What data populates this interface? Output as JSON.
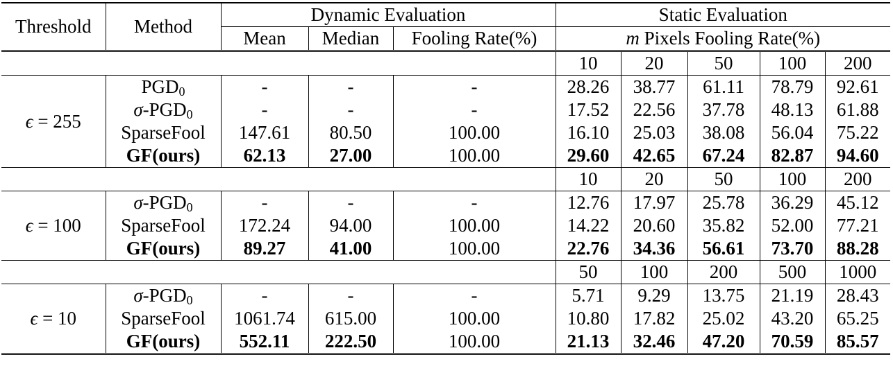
{
  "header": {
    "threshold": "Threshold",
    "method": "Method",
    "dynamic": "Dynamic Evaluation",
    "static": "Static Evaluation",
    "mean": "Mean",
    "median": "Median",
    "fooling": "Fooling Rate(%)",
    "m": "m",
    "pixels_fooling": " Pixels Fooling Rate(%)"
  },
  "groups": [
    {
      "eps_symbol": "ϵ",
      "eps_value": " = 255",
      "m_values": [
        "10",
        "20",
        "50",
        "100",
        "200"
      ],
      "rows": [
        {
          "method": "PGD",
          "sub": "0",
          "prefix": "",
          "bold": false,
          "dyn": [
            "-",
            "-",
            "-"
          ],
          "stat": [
            "28.26",
            "38.77",
            "61.11",
            "78.79",
            "92.61"
          ]
        },
        {
          "method": "-PGD",
          "sub": "0",
          "prefix": "σ",
          "bold": false,
          "dyn": [
            "-",
            "-",
            "-"
          ],
          "stat": [
            "17.52",
            "22.56",
            "37.78",
            "48.13",
            "61.88"
          ]
        },
        {
          "method": "SparseFool",
          "sub": "",
          "prefix": "",
          "bold": false,
          "dyn": [
            "147.61",
            "80.50",
            "100.00"
          ],
          "stat": [
            "16.10",
            "25.03",
            "38.08",
            "56.04",
            "75.22"
          ]
        },
        {
          "method": "GF(ours)",
          "sub": "",
          "prefix": "",
          "bold": true,
          "dyn": [
            "62.13",
            "27.00",
            "100.00"
          ],
          "stat": [
            "29.60",
            "42.65",
            "67.24",
            "82.87",
            "94.60"
          ]
        }
      ]
    },
    {
      "eps_symbol": "ϵ",
      "eps_value": " = 100",
      "m_values": [
        "10",
        "20",
        "50",
        "100",
        "200"
      ],
      "rows": [
        {
          "method": "-PGD",
          "sub": "0",
          "prefix": "σ",
          "bold": false,
          "dyn": [
            "-",
            "-",
            "-"
          ],
          "stat": [
            "12.76",
            "17.97",
            "25.78",
            "36.29",
            "45.12"
          ]
        },
        {
          "method": "SparseFool",
          "sub": "",
          "prefix": "",
          "bold": false,
          "dyn": [
            "172.24",
            "94.00",
            "100.00"
          ],
          "stat": [
            "14.22",
            "20.60",
            "35.82",
            "52.00",
            "77.21"
          ]
        },
        {
          "method": "GF(ours)",
          "sub": "",
          "prefix": "",
          "bold": true,
          "dyn": [
            "89.27",
            "41.00",
            "100.00"
          ],
          "stat": [
            "22.76",
            "34.36",
            "56.61",
            "73.70",
            "88.28"
          ]
        }
      ]
    },
    {
      "eps_symbol": "ϵ",
      "eps_value": " = 10",
      "m_values": [
        "50",
        "100",
        "200",
        "500",
        "1000"
      ],
      "rows": [
        {
          "method": "-PGD",
          "sub": "0",
          "prefix": "σ",
          "bold": false,
          "dyn": [
            "-",
            "-",
            "-"
          ],
          "stat": [
            "5.71",
            "9.29",
            "13.75",
            "21.19",
            "28.43"
          ]
        },
        {
          "method": "SparseFool",
          "sub": "",
          "prefix": "",
          "bold": false,
          "dyn": [
            "1061.74",
            "615.00",
            "100.00"
          ],
          "stat": [
            "10.80",
            "17.82",
            "25.02",
            "43.20",
            "65.25"
          ]
        },
        {
          "method": "GF(ours)",
          "sub": "",
          "prefix": "",
          "bold": true,
          "dyn": [
            "552.11",
            "222.50",
            "100.00"
          ],
          "stat": [
            "21.13",
            "32.46",
            "47.20",
            "70.59",
            "85.57"
          ]
        }
      ]
    }
  ]
}
